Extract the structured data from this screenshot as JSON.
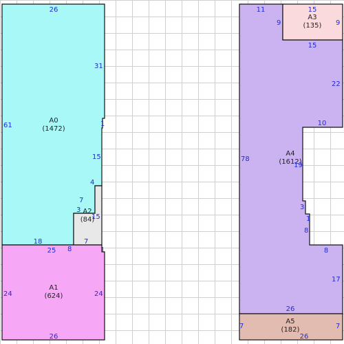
{
  "colors": {
    "grid": "#cfcfcf",
    "outline": "#111111",
    "dimension_text": "#1f2bd6",
    "label_text": "#222222"
  },
  "areas": [
    {
      "id": "A0",
      "area": "(1472)",
      "fill": "#a8f8f8"
    },
    {
      "id": "A1",
      "area": "(624)",
      "fill": "#f6a8f6"
    },
    {
      "id": "A2",
      "area": "(84)",
      "fill": "#e8e8e8"
    },
    {
      "id": "A3",
      "area": "(135)",
      "fill": "#fadadd"
    },
    {
      "id": "A4",
      "area": "(1612)",
      "fill": "#cbb3f2"
    },
    {
      "id": "A5",
      "area": "(182)",
      "fill": "#e2bcb0"
    }
  ],
  "dimensions": {
    "a0_top": "26",
    "a0_left": "61",
    "a0_right_upper": "31",
    "a0_step": "1",
    "a0_right_lower": "15",
    "a0_bottom": "18",
    "a2_top": "4",
    "a2_right": "15",
    "a2_step_upper": "7",
    "a2_step_h": "3",
    "a2_left": "8",
    "a2_bottom": "7",
    "a1_top": "25",
    "a1_step": "1",
    "a1_left": "24",
    "a1_right": "24",
    "a1_bottom": "26",
    "a4_top": "11",
    "a4_left": "78",
    "a4_right_upper": "22",
    "a4_notch_top": "10",
    "a4_notch_left": "19",
    "a4_small_a": "3",
    "a4_small_b": "1",
    "a4_small_c": "8",
    "a4_lower_h": "8",
    "a4_right_lower": "17",
    "a4_bottom": "26",
    "a3_top": "15",
    "a3_left": "9",
    "a3_right": "9",
    "a3_bottom": "15",
    "a5_left": "7",
    "a5_right": "7",
    "a5_bottom": "26"
  }
}
